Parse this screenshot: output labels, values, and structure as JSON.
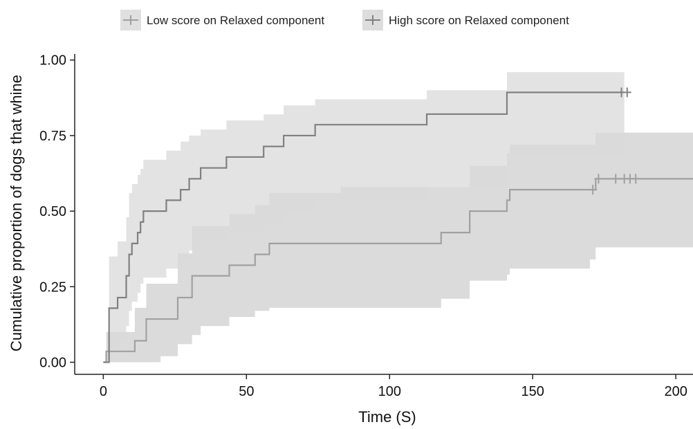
{
  "chart_data": {
    "type": "line",
    "subtype": "kaplan-meier step with confidence bands",
    "title": "",
    "xlabel": "Time (S)",
    "ylabel": "Cumulative proportion of dogs that whine",
    "xlim": [
      -10,
      206
    ],
    "ylim": [
      -0.04,
      1.02
    ],
    "xticks": [
      0,
      50,
      100,
      150,
      200
    ],
    "xtick_labels": [
      "0",
      "50",
      "100",
      "150",
      "200"
    ],
    "yticks": [
      0,
      0.25,
      0.5,
      0.75,
      1.0
    ],
    "ytick_labels": [
      "0.00",
      "0.25",
      "0.50",
      "0.75",
      "1.00"
    ],
    "grid": false,
    "legend_position": "top",
    "series": [
      {
        "name": "Low score on Relaxed component",
        "color": "#a0a0a0",
        "band_color": "#cfcfcf",
        "step_x": [
          0,
          1,
          8,
          11,
          15,
          20,
          26,
          31,
          34,
          38,
          42,
          44,
          49,
          53,
          58,
          63,
          66,
          74,
          83,
          118,
          128,
          141,
          142,
          170,
          172,
          178,
          180,
          182,
          184,
          186,
          210
        ],
        "step_y": [
          0,
          0.036,
          0.036,
          0.071,
          0.143,
          0.143,
          0.214,
          0.286,
          0.286,
          0.286,
          0.286,
          0.321,
          0.321,
          0.357,
          0.393,
          0.393,
          0.393,
          0.393,
          0.393,
          0.429,
          0.5,
          0.536,
          0.571,
          0.571,
          0.607,
          0.607,
          0.607,
          0.607,
          0.607,
          0.607,
          0.607
        ],
        "band_lower": [
          0,
          0,
          0,
          0,
          0,
          0.02,
          0.06,
          0.09,
          0.12,
          0.12,
          0.12,
          0.15,
          0.15,
          0.17,
          0.18,
          0.18,
          0.18,
          0.18,
          0.18,
          0.21,
          0.27,
          0.29,
          0.31,
          0.34,
          0.38,
          0.38,
          0.38,
          0.38,
          0.38,
          0.38,
          0.38
        ],
        "band_upper": [
          0,
          0.1,
          0.1,
          0.18,
          0.26,
          0.26,
          0.36,
          0.45,
          0.45,
          0.45,
          0.45,
          0.49,
          0.49,
          0.52,
          0.56,
          0.56,
          0.56,
          0.56,
          0.58,
          0.58,
          0.65,
          0.69,
          0.72,
          0.72,
          0.76,
          0.76,
          0.76,
          0.76,
          0.76,
          0.76,
          0.76
        ],
        "censored_x": [
          171,
          173,
          179,
          182,
          184,
          186
        ],
        "censored_y": [
          0.571,
          0.607,
          0.607,
          0.607,
          0.607,
          0.607
        ]
      },
      {
        "name": "High score on Relaxed component",
        "color": "#808080",
        "band_color": "#d9d9d9",
        "step_x": [
          0,
          2,
          5,
          8,
          9,
          10,
          12,
          13,
          14,
          15,
          18,
          22,
          27,
          30,
          34,
          38,
          43,
          56,
          63,
          74,
          83,
          113,
          141,
          182
        ],
        "step_y": [
          0,
          0.179,
          0.214,
          0.286,
          0.357,
          0.393,
          0.429,
          0.464,
          0.5,
          0.5,
          0.5,
          0.536,
          0.571,
          0.607,
          0.643,
          0.643,
          0.679,
          0.714,
          0.75,
          0.786,
          0.786,
          0.821,
          0.893,
          0.893
        ],
        "band_lower": [
          0,
          0.05,
          0.07,
          0.12,
          0.17,
          0.2,
          0.23,
          0.26,
          0.28,
          0.28,
          0.28,
          0.31,
          0.34,
          0.37,
          0.4,
          0.4,
          0.43,
          0.46,
          0.5,
          0.54,
          0.54,
          0.58,
          0.68,
          0.68
        ],
        "band_upper": [
          0,
          0.35,
          0.4,
          0.48,
          0.56,
          0.59,
          0.62,
          0.64,
          0.67,
          0.67,
          0.67,
          0.7,
          0.73,
          0.75,
          0.77,
          0.77,
          0.8,
          0.82,
          0.85,
          0.87,
          0.87,
          0.9,
          0.96,
          0.96
        ],
        "censored_x": [
          181,
          183
        ],
        "censored_y": [
          0.893,
          0.893
        ]
      }
    ]
  }
}
